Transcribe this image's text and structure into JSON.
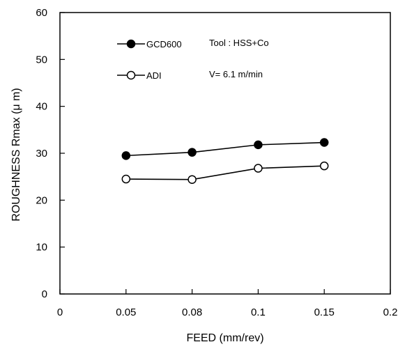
{
  "chart_data": {
    "type": "line",
    "categories": [
      "0",
      "0.05",
      "0.08",
      "0.1",
      "0.15",
      "0.2"
    ],
    "x": [
      "0.05",
      "0.08",
      "0.1",
      "0.15"
    ],
    "series": [
      {
        "name": "GCD600",
        "marker": "filled-circle",
        "values": [
          29.5,
          30.2,
          31.8,
          32.3
        ]
      },
      {
        "name": "ADI",
        "marker": "open-circle",
        "values": [
          24.5,
          24.4,
          26.8,
          27.3
        ]
      }
    ],
    "xlabel": "FEED  (mm/rev)",
    "ylabel": "ROUGHNESS Rmax (μ m)",
    "ylim": [
      0,
      60
    ],
    "yticks": [
      "0",
      "10",
      "20",
      "30",
      "40",
      "50",
      "60"
    ],
    "annotations": [
      "Tool : HSS+Co",
      "V= 6.1 m/min"
    ],
    "grid": false,
    "legend": "top-left"
  }
}
